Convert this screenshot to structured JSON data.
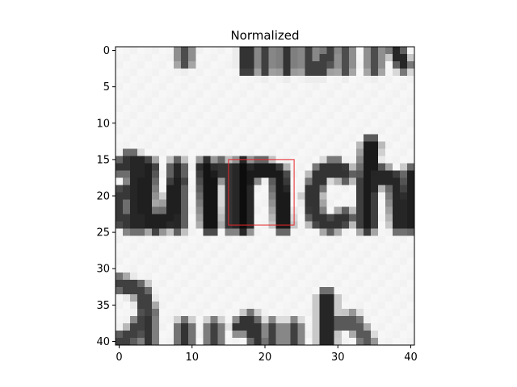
{
  "chart_data": {
    "type": "heatmap",
    "title": "Normalized",
    "xlabel": "",
    "ylabel": "",
    "xlim": [
      -0.5,
      40.5
    ],
    "ylim": [
      40.5,
      -0.5
    ],
    "x_ticks": [
      0,
      10,
      20,
      30,
      40
    ],
    "y_ticks": [
      0,
      5,
      10,
      15,
      20,
      25,
      30,
      35,
      40
    ],
    "colormap": "gray",
    "grid": false,
    "image_description": "grayscale crop of handwritten text showing the letters 'unch' in the middle row with partial letters above and below",
    "highlight_box": {
      "x0": 15,
      "y0": 15,
      "x1": 24,
      "y1": 24,
      "color": "#e8262b"
    },
    "strokes": [
      {
        "c": [
          [
            0.5,
            16
          ],
          [
            1.5,
            15
          ],
          [
            2.5,
            16
          ]
        ],
        "w": 1.7,
        "v": 0.2
      },
      {
        "c": [
          [
            2.5,
            15.5
          ],
          [
            2.5,
            24
          ]
        ],
        "w": 1.6,
        "v": 0.15
      },
      {
        "c": [
          [
            1.5,
            19
          ],
          [
            0,
            20
          ],
          [
            0,
            23
          ],
          [
            1.5,
            24
          ],
          [
            2.5,
            22
          ]
        ],
        "w": 1.5,
        "v": 0.22
      },
      {
        "c": [
          [
            4,
            16
          ],
          [
            3.5,
            22
          ],
          [
            5,
            24
          ],
          [
            7,
            23
          ],
          [
            8,
            18
          ]
        ],
        "w": 1.7,
        "v": 0.12
      },
      {
        "c": [
          [
            8,
            16
          ],
          [
            8,
            24
          ]
        ],
        "w": 1.5,
        "v": 0.15
      },
      {
        "c": [
          [
            12,
            16
          ],
          [
            12.5,
            24
          ]
        ],
        "w": 1.8,
        "v": 0.08
      },
      {
        "c": [
          [
            12.5,
            18
          ],
          [
            14,
            16
          ],
          [
            15.5,
            17
          ],
          [
            15.5,
            24
          ]
        ],
        "w": 1.5,
        "v": 0.2
      },
      {
        "c": [
          [
            17,
            16
          ],
          [
            17,
            24
          ]
        ],
        "w": 1.8,
        "v": 0.05
      },
      {
        "c": [
          [
            17,
            18
          ],
          [
            19.5,
            16
          ],
          [
            22,
            17
          ],
          [
            22.5,
            24
          ]
        ],
        "w": 1.6,
        "v": 0.1
      },
      {
        "c": [
          [
            31,
            17
          ],
          [
            29.5,
            16
          ],
          [
            27.5,
            17
          ],
          [
            26.5,
            20
          ],
          [
            27,
            23
          ],
          [
            29,
            24
          ],
          [
            31,
            23
          ]
        ],
        "w": 1.6,
        "v": 0.2
      },
      {
        "c": [
          [
            34.5,
            13
          ],
          [
            34,
            18
          ],
          [
            34,
            24
          ]
        ],
        "w": 1.7,
        "v": 0.1
      },
      {
        "c": [
          [
            34,
            19
          ],
          [
            36,
            17
          ],
          [
            38,
            18
          ],
          [
            38.5,
            24
          ]
        ],
        "w": 1.6,
        "v": 0.15
      },
      {
        "c": [
          [
            40,
            17
          ],
          [
            40,
            24
          ]
        ],
        "w": 1.4,
        "v": 0.12
      },
      {
        "c": [
          [
            9,
            0
          ],
          [
            9,
            1.5
          ]
        ],
        "w": 1.3,
        "v": 0.3
      },
      {
        "c": [
          [
            17.5,
            0
          ],
          [
            17.5,
            2.5
          ]
        ],
        "w": 1.3,
        "v": 0.2
      },
      {
        "c": [
          [
            20,
            0
          ],
          [
            20,
            2.5
          ]
        ],
        "w": 1.3,
        "v": 0.25
      },
      {
        "c": [
          [
            23,
            0
          ],
          [
            23,
            2.5
          ]
        ],
        "w": 1.3,
        "v": 0.2
      },
      {
        "c": [
          [
            26,
            0
          ],
          [
            26,
            2.5
          ],
          [
            28,
            2.5
          ],
          [
            29,
            0
          ]
        ],
        "w": 1.3,
        "v": 0.25
      },
      {
        "c": [
          [
            31,
            0
          ],
          [
            31,
            2.5
          ]
        ],
        "w": 1.3,
        "v": 0.3
      },
      {
        "c": [
          [
            35,
            0
          ],
          [
            35,
            2.5
          ]
        ],
        "w": 1.3,
        "v": 0.3
      },
      {
        "c": [
          [
            38,
            0
          ],
          [
            39,
            2
          ]
        ],
        "w": 1.3,
        "v": 0.15
      },
      {
        "c": [
          [
            0,
            32
          ],
          [
            3,
            33
          ],
          [
            4,
            36
          ],
          [
            2,
            39
          ],
          [
            0,
            40
          ]
        ],
        "w": 1.5,
        "v": 0.25
      },
      {
        "c": [
          [
            4,
            37
          ],
          [
            4,
            40
          ]
        ],
        "w": 1.3,
        "v": 0.2
      },
      {
        "c": [
          [
            9,
            38
          ],
          [
            9,
            40
          ]
        ],
        "w": 1.4,
        "v": 0.2
      },
      {
        "c": [
          [
            13,
            38
          ],
          [
            13,
            40
          ]
        ],
        "w": 1.4,
        "v": 0.25
      },
      {
        "c": [
          [
            16.5,
            38
          ],
          [
            18,
            37
          ],
          [
            19,
            40
          ]
        ],
        "w": 1.4,
        "v": 0.2
      },
      {
        "c": [
          [
            21,
            38
          ],
          [
            21,
            40
          ]
        ],
        "w": 1.3,
        "v": 0.25
      },
      {
        "c": [
          [
            24,
            38
          ],
          [
            24,
            40
          ]
        ],
        "w": 1.3,
        "v": 0.25
      },
      {
        "c": [
          [
            28.5,
            34
          ],
          [
            28.5,
            40
          ]
        ],
        "w": 1.6,
        "v": 0.15
      },
      {
        "c": [
          [
            29,
            38
          ],
          [
            32,
            37
          ],
          [
            34,
            40
          ]
        ],
        "w": 1.3,
        "v": 0.35
      }
    ]
  }
}
